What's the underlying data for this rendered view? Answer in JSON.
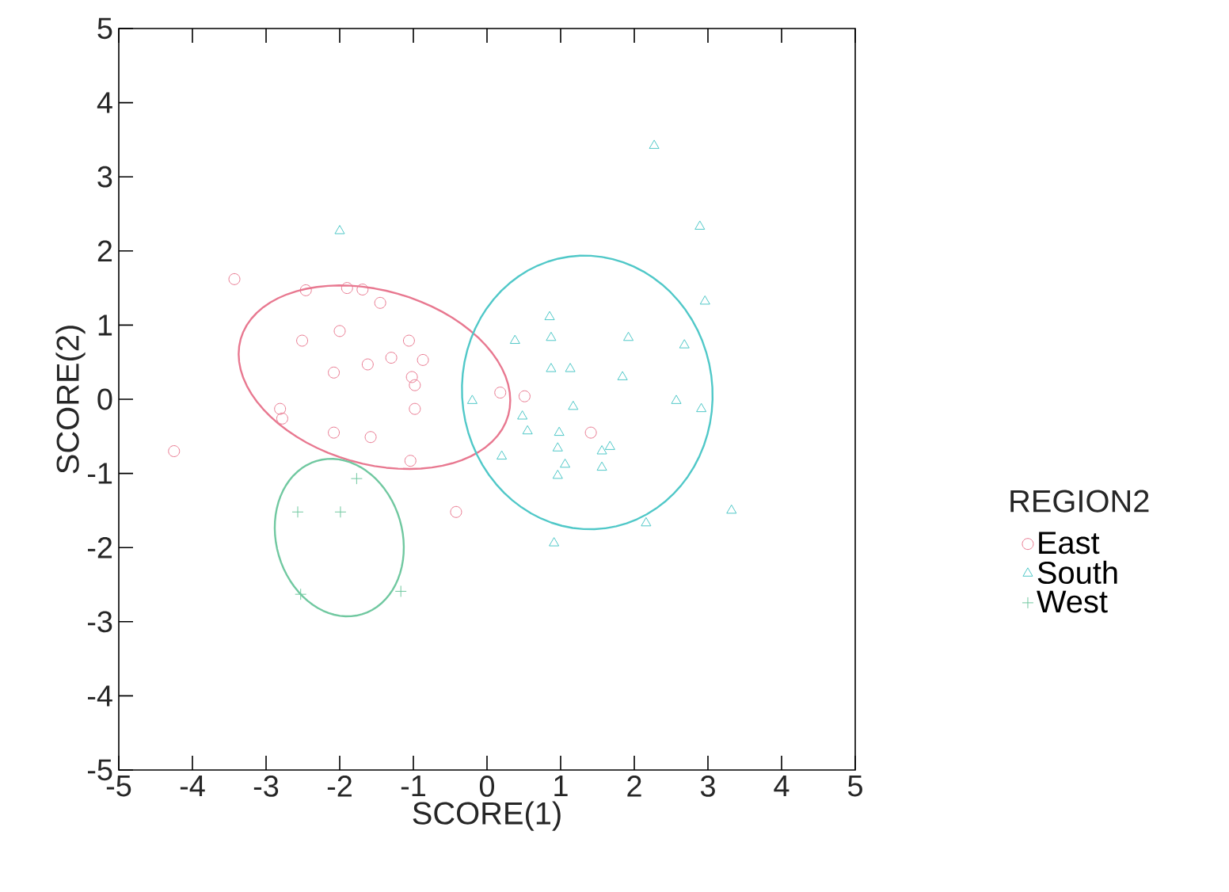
{
  "chart_data": {
    "type": "scatter",
    "xlabel": "SCORE(1)",
    "ylabel": "SCORE(2)",
    "legend_title": "REGION2",
    "xlim": [
      -5,
      5
    ],
    "ylim": [
      -5,
      5
    ],
    "xticks": [
      -5,
      -4,
      -3,
      -2,
      -1,
      0,
      1,
      2,
      3,
      4,
      5
    ],
    "yticks": [
      -5,
      -4,
      -3,
      -2,
      -1,
      0,
      1,
      2,
      3,
      4,
      5
    ],
    "grid": false,
    "legend": "right",
    "series": [
      {
        "name": "East",
        "color": "#e87890",
        "marker": "circle",
        "x": [
          -4.25,
          -3.43,
          -2.46,
          -1.9,
          -1.69,
          -1.45,
          -2.51,
          -2.0,
          -2.08,
          -1.62,
          -1.3,
          -1.06,
          -0.87,
          -1.02,
          -0.98,
          -0.98,
          -2.81,
          -2.78,
          -2.08,
          -1.58,
          -1.04,
          -0.42,
          0.18,
          0.51,
          1.41
        ],
        "values": [
          -0.7,
          1.62,
          1.47,
          1.5,
          1.48,
          1.3,
          0.79,
          0.92,
          0.36,
          0.47,
          0.56,
          0.79,
          0.53,
          0.3,
          0.19,
          -0.13,
          -0.13,
          -0.26,
          -0.45,
          -0.51,
          -0.83,
          -1.52,
          0.09,
          0.04,
          -0.45
        ]
      },
      {
        "name": "South",
        "color": "#50c8c8",
        "marker": "triangle",
        "x": [
          2.27,
          2.89,
          2.96,
          0.85,
          0.87,
          0.38,
          1.92,
          2.68,
          0.87,
          1.13,
          1.84,
          1.17,
          2.57,
          2.91,
          0.48,
          0.55,
          0.98,
          -0.2,
          0.2,
          0.96,
          1.06,
          1.56,
          1.67,
          1.56,
          0.96,
          2.16,
          0.91,
          3.32,
          -2.0
        ],
        "values": [
          3.42,
          2.33,
          1.32,
          1.11,
          0.83,
          0.79,
          0.83,
          0.73,
          0.41,
          0.41,
          0.3,
          -0.1,
          -0.02,
          -0.13,
          -0.23,
          -0.43,
          -0.45,
          -0.02,
          -0.77,
          -0.66,
          -0.88,
          -0.7,
          -0.64,
          -0.92,
          -1.03,
          -1.67,
          -1.94,
          -1.5,
          2.27
        ]
      },
      {
        "name": "West",
        "color": "#70c8a0",
        "marker": "cross",
        "x": [
          -2.57,
          -1.99,
          -2.53,
          -1.17,
          -1.77
        ],
        "values": [
          -1.52,
          -1.52,
          -2.63,
          -2.59,
          -1.07
        ]
      }
    ]
  }
}
